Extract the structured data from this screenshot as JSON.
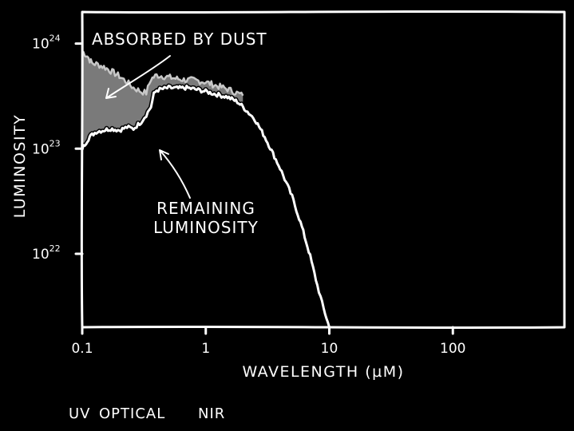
{
  "chart_data": {
    "type": "area",
    "xlabel": "WAVELENGTH (µM)",
    "ylabel": "LUMINOSITY",
    "xscale": "log",
    "yscale": "log",
    "xlim": [
      0.1,
      800
    ],
    "ylim": [
      2e+21,
      2e+24
    ],
    "x_ticks": [
      {
        "value": 0.1,
        "label": "0.1"
      },
      {
        "value": 1,
        "label": "1"
      },
      {
        "value": 10,
        "label": "10"
      },
      {
        "value": 100,
        "label": "100"
      }
    ],
    "y_ticks": [
      {
        "value": 1e+22,
        "label": "10",
        "exp": "22"
      },
      {
        "value": 1e+23,
        "label": "10",
        "exp": "23"
      },
      {
        "value": 1e+24,
        "label": "10",
        "exp": "24"
      }
    ],
    "grid": false,
    "series": [
      {
        "x": [
          0.1,
          0.105,
          0.11,
          0.115,
          0.12,
          0.13,
          0.15,
          0.17,
          0.2,
          0.23,
          0.26,
          0.3,
          0.33,
          0.36,
          0.4,
          0.45,
          0.5,
          0.6,
          0.7,
          0.8,
          1.0,
          1.2,
          1.5,
          2.0
        ],
        "y": [
          8.5e+23,
          8e+23,
          7.6e+23,
          7e+23,
          6.5e+23,
          6.4e+23,
          6e+23,
          5.5e+23,
          4.9e+23,
          4.3e+23,
          3.8e+23,
          3.5e+23,
          3.4e+23,
          4.6e+23,
          5e+23,
          4.9e+23,
          4.8e+23,
          4.6e+23,
          4.5e+23,
          4.5e+23,
          4.3e+23,
          4e+23,
          3.7e+23,
          3.2e+23
        ]
      },
      {
        "x": [
          0.1,
          0.105,
          0.11,
          0.115,
          0.12,
          0.13,
          0.15,
          0.17,
          0.2,
          0.23,
          0.26,
          0.3,
          0.33,
          0.36,
          0.38,
          0.4,
          0.45,
          0.5,
          0.6,
          0.7,
          0.8,
          1.0,
          1.2,
          1.5,
          1.8,
          2.0,
          2.5,
          3.0,
          3.5,
          4.0,
          5.0,
          6.0,
          7.0,
          8.0,
          9.0,
          10.0
        ],
        "y": [
          1e+23,
          1.1e+23,
          1.2e+23,
          1.3e+23,
          1.35e+23,
          1.45e+23,
          1.5e+23,
          1.55e+23,
          1.5e+23,
          1.6e+23,
          1.55e+23,
          1.8e+23,
          2.1e+23,
          2.5e+23,
          3.3e+23,
          3.6e+23,
          3.7e+23,
          3.8e+23,
          3.75e+23,
          3.8e+23,
          3.7e+23,
          3.5e+23,
          3.3e+23,
          3.1e+23,
          2.8e+23,
          2.5e+23,
          1.9e+23,
          1.3e+23,
          9e+22,
          6.5e+22,
          3.5e+22,
          1.8e+22,
          9.5e+21,
          5e+21,
          3e+21,
          2e+21
        ]
      }
    ],
    "annotations": [
      {
        "text": "ABSORBED BY DUST",
        "target": [
          0.14,
          3.7e+23
        ]
      },
      {
        "text": "REMAINING LUMINOSITY",
        "target": [
          0.38,
          1.2e+23
        ]
      }
    ],
    "band_labels": [
      "UV",
      "OPTICAL",
      "NIR"
    ]
  }
}
